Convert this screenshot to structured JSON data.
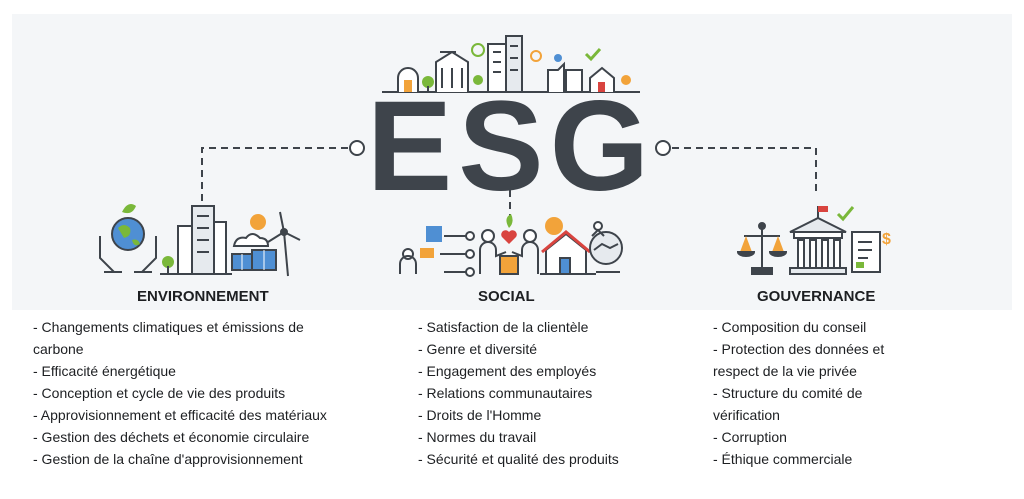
{
  "logo_text": "ESG",
  "colors": {
    "ink": "#3e444b",
    "green": "#7ab83a",
    "blue": "#4f8fd3",
    "red": "#d9443f",
    "orange": "#f2a33a",
    "banner": "#f4f6f8"
  },
  "icons": [
    "city-icon",
    "globe-hands-icon",
    "buildings-icon",
    "solar-panel-icon",
    "wind-turbine-icon",
    "network-people-icon",
    "heart-hands-icon",
    "house-icon",
    "handshake-icon",
    "balance-scale-icon",
    "courthouse-icon",
    "document-dollar-icon"
  ],
  "pillars": [
    {
      "title": "ENVIRONNEMENT",
      "items": [
        "- Changements climatiques et émissions de carbone",
        "- Efficacité énergétique",
        "- Conception et cycle de vie des produits",
        "- Approvisionnement et efficacité des matériaux",
        "- Gestion des déchets et économie circulaire",
        "- Gestion de la chaîne d'approvisionnement"
      ]
    },
    {
      "title": "SOCIAL",
      "items": [
        "- Satisfaction de la clientèle",
        "- Genre et diversité",
        "- Engagement des employés",
        "- Relations communautaires",
        "- Droits de l'Homme",
        "- Normes du travail",
        "- Sécurité et qualité des produits"
      ]
    },
    {
      "title": "GOUVERNANCE",
      "items": [
        "- Composition du conseil",
        "- Protection des données et respect de la vie privée",
        "- Structure du comité de vérification",
        "- Corruption",
        "- Éthique commerciale"
      ]
    }
  ]
}
